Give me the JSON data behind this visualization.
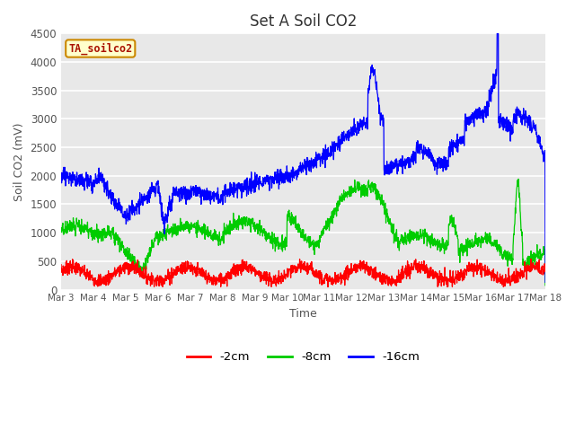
{
  "title": "Set A Soil CO2",
  "ylabel": "Soil CO2 (mV)",
  "xlabel": "Time",
  "annotation": "TA_soilco2",
  "ylim": [
    0,
    4500
  ],
  "xlim": [
    0,
    15
  ],
  "figure_bg": "#e8e8e8",
  "plot_bg": "#e8e8e8",
  "outer_bg": "#ffffff",
  "grid_color": "#ffffff",
  "series": {
    "2cm": {
      "color": "#ff0000",
      "label": "-2cm"
    },
    "8cm": {
      "color": "#00cc00",
      "label": "-8cm"
    },
    "16cm": {
      "color": "#0000ff",
      "label": "-16cm"
    }
  },
  "x_ticks": [
    "Mar 3",
    "Mar 4",
    "Mar 5",
    "Mar 6",
    "Mar 7",
    "Mar 8",
    "Mar 9",
    "Mar 10",
    "Mar 11",
    "Mar 12",
    "Mar 13",
    "Mar 14",
    "Mar 15",
    "Mar 16",
    "Mar 17",
    "Mar 18"
  ],
  "y_ticks": [
    0,
    500,
    1000,
    1500,
    2000,
    2500,
    3000,
    3500,
    4000,
    4500
  ],
  "tick_color": "#555555",
  "label_fontsize": 9,
  "title_fontsize": 12,
  "n_points": 2000
}
